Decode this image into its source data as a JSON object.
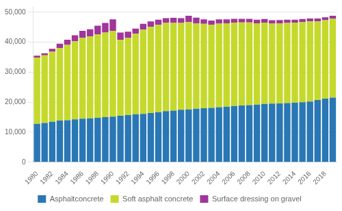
{
  "chart_data": {
    "type": "bar",
    "stacked": true,
    "categories": [
      "1980",
      null,
      "1982",
      null,
      "1984",
      null,
      "1986",
      null,
      "1988",
      null,
      "1990",
      null,
      "1992",
      null,
      "1994",
      null,
      "1996",
      null,
      "1998",
      null,
      "2000",
      null,
      "2002",
      null,
      "2004",
      null,
      "2006",
      null,
      "2008",
      null,
      "2010",
      null,
      "2012",
      null,
      "2014",
      null,
      "2016",
      null,
      "2018",
      null
    ],
    "series": [
      {
        "name": "Asphaltconcrete",
        "color": "#2977b5",
        "values": [
          12800,
          13100,
          13500,
          13900,
          14000,
          14300,
          14500,
          14600,
          14800,
          15000,
          15200,
          15500,
          15700,
          16000,
          16100,
          16400,
          16700,
          17000,
          17200,
          17500,
          17600,
          17800,
          18000,
          18100,
          18300,
          18500,
          18700,
          18900,
          19000,
          19200,
          19400,
          19500,
          19600,
          19700,
          19800,
          20000,
          20200,
          20700,
          21200,
          21500
        ]
      },
      {
        "name": "Soft asphalt concrete",
        "color": "#c5d92d",
        "values": [
          22100,
          22500,
          23300,
          24200,
          25100,
          26000,
          27000,
          27300,
          27800,
          28200,
          28600,
          25300,
          25800,
          26800,
          28100,
          28700,
          29100,
          29400,
          29200,
          28900,
          29100,
          28500,
          28100,
          27700,
          27900,
          27800,
          27800,
          27700,
          27600,
          27100,
          27100,
          26700,
          26700,
          26700,
          26700,
          26700,
          26700,
          26200,
          26100,
          26300
        ]
      },
      {
        "name": "Surface dressing on gravel",
        "color": "#a0359a",
        "values": [
          600,
          700,
          1000,
          1400,
          1700,
          2000,
          2300,
          2400,
          2900,
          3200,
          3800,
          2400,
          2000,
          1700,
          1900,
          1800,
          1700,
          1600,
          1700,
          1600,
          2100,
          1900,
          1500,
          1400,
          1400,
          1300,
          1300,
          1200,
          1200,
          1200,
          1200,
          1100,
          1100,
          1100,
          1000,
          1000,
          1000,
          1000,
          1000,
          1000
        ]
      }
    ],
    "ylim": [
      0,
      52000
    ],
    "yticks": [
      0,
      {
        "value": 10000,
        "label": "10,000"
      },
      {
        "value": 20000,
        "label": "20,000"
      },
      {
        "value": 30000,
        "label": "30,000"
      },
      {
        "value": 40000,
        "label": "40,000"
      },
      {
        "value": 50000,
        "label": "50,000"
      }
    ],
    "grid": true,
    "legend": "bottom"
  }
}
